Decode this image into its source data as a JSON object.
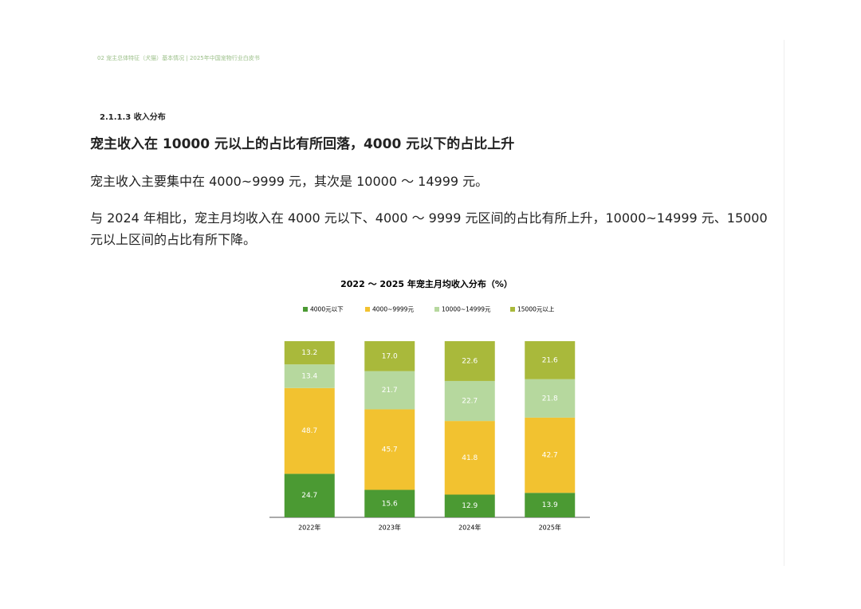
{
  "header": {
    "running_title": "02 宠主总体特征（犬猫）基本情况 | 2025年中国宠物行业白皮书"
  },
  "section": {
    "label": "2.1.1.3 收入分布",
    "heading": "宠主收入在 10000 元以上的占比有所回落，4000 元以下的占比上升",
    "paragraphs": [
      "宠主收入主要集中在 4000~9999 元，其次是 10000 ～ 14999 元。",
      "与 2024 年相比，宠主月均收入在 4000 元以下、4000 ～ 9999 元区间的占比有所上升，10000~14999 元、15000 元以上区间的占比有所下降。"
    ]
  },
  "chart_data": {
    "type": "bar",
    "stacked": true,
    "title": "2022 ～ 2025 年宠主月均收入分布（%）",
    "categories": [
      "2022年",
      "2023年",
      "2024年",
      "2025年"
    ],
    "series": [
      {
        "name": "4000元以下",
        "color": "#4b9a33",
        "values": [
          24.7,
          15.6,
          12.9,
          13.9
        ],
        "value_labels": [
          "24.7",
          "15.6",
          "12.9",
          "13.9"
        ]
      },
      {
        "name": "4000~9999元",
        "color": "#f2c230",
        "values": [
          48.7,
          45.7,
          41.8,
          42.7
        ],
        "value_labels": [
          "48.7",
          "45.7",
          "41.8",
          "42.7"
        ]
      },
      {
        "name": "10000~14999元",
        "color": "#b6d89e",
        "values": [
          13.4,
          21.7,
          22.7,
          21.8
        ],
        "value_labels": [
          "13.4",
          "21.7",
          "22.7",
          "21.8"
        ]
      },
      {
        "name": "15000元以上",
        "color": "#a9b93b",
        "values": [
          13.2,
          17.0,
          22.6,
          21.6
        ],
        "value_labels": [
          "13.2",
          "17.0",
          "22.6",
          "21.6"
        ]
      }
    ],
    "ylim": [
      0,
      100
    ],
    "legend": "top"
  }
}
